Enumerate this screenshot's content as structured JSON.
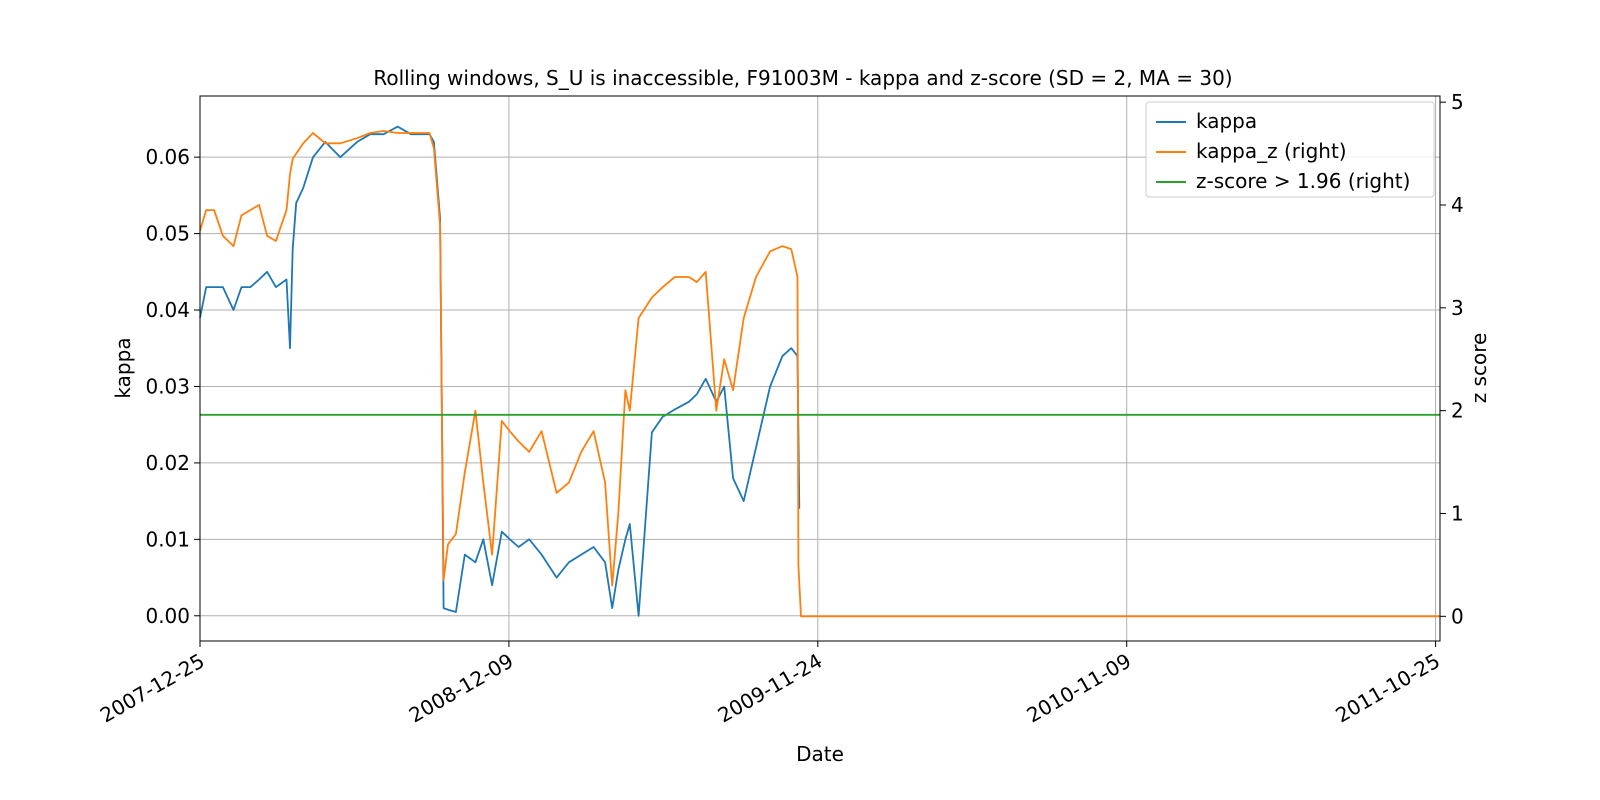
{
  "chart_data": {
    "type": "line",
    "title": "Rolling windows, S_U is inaccessible, F91003M - kappa and z-score (SD = 2, MA = 30)",
    "xlabel": "Date",
    "ylabel": "kappa",
    "ylabel_right": "z score",
    "x_ticks": [
      "2007-12-25",
      "2008-12-09",
      "2009-11-24",
      "2010-11-09",
      "2011-10-25"
    ],
    "y_ticks": [
      "0.00",
      "0.01",
      "0.02",
      "0.03",
      "0.04",
      "0.05",
      "0.06"
    ],
    "y_right_ticks": [
      "0",
      "1",
      "2",
      "3",
      "4",
      "5"
    ],
    "xlim": [
      "2007-12-25",
      "2011-10-30"
    ],
    "ylim": [
      -0.0033,
      0.068
    ],
    "ylim_right": [
      -0.24,
      5.06
    ],
    "grid": true,
    "legend_position": "top-right",
    "colors": {
      "kappa": "#1f77b4",
      "kappa_z": "#ff7f0e",
      "threshold": "#2ca02c"
    },
    "legend": [
      "kappa",
      "kappa_z (right)",
      "z-score > 1.96 (right)"
    ],
    "series": [
      {
        "name": "kappa",
        "axis": "left",
        "x": [
          "2007-12-25",
          "2008-01-01",
          "2008-01-10",
          "2008-01-20",
          "2008-02-01",
          "2008-02-10",
          "2008-02-20",
          "2008-03-01",
          "2008-03-10",
          "2008-03-20",
          "2008-04-01",
          "2008-04-05",
          "2008-04-08",
          "2008-04-12",
          "2008-04-20",
          "2008-05-01",
          "2008-05-15",
          "2008-06-01",
          "2008-06-20",
          "2008-07-05",
          "2008-07-20",
          "2008-08-05",
          "2008-08-20",
          "2008-09-01",
          "2008-09-10",
          "2008-09-15",
          "2008-09-22",
          "2008-09-26",
          "2008-10-01",
          "2008-10-10",
          "2008-10-20",
          "2008-11-01",
          "2008-11-10",
          "2008-11-20",
          "2008-12-01",
          "2008-12-10",
          "2008-12-20",
          "2009-01-01",
          "2009-01-15",
          "2009-02-01",
          "2009-02-15",
          "2009-03-01",
          "2009-03-15",
          "2009-03-28",
          "2009-04-05",
          "2009-04-12",
          "2009-04-20",
          "2009-04-25",
          "2009-05-05",
          "2009-05-20",
          "2009-06-01",
          "2009-06-15",
          "2009-07-01",
          "2009-07-10",
          "2009-07-20",
          "2009-08-01",
          "2009-08-10",
          "2009-08-20",
          "2009-09-01",
          "2009-09-15",
          "2009-10-01",
          "2009-10-15",
          "2009-10-25",
          "2009-11-01",
          "2009-11-03"
        ],
        "values": [
          0.039,
          0.043,
          0.043,
          0.043,
          0.04,
          0.043,
          0.043,
          0.044,
          0.045,
          0.043,
          0.044,
          0.035,
          0.048,
          0.054,
          0.056,
          0.06,
          0.062,
          0.06,
          0.062,
          0.063,
          0.063,
          0.064,
          0.063,
          0.063,
          0.063,
          0.062,
          0.052,
          0.001,
          0.0008,
          0.0005,
          0.008,
          0.007,
          0.01,
          0.004,
          0.011,
          0.01,
          0.009,
          0.01,
          0.008,
          0.005,
          0.007,
          0.008,
          0.009,
          0.007,
          0.001,
          0.006,
          0.01,
          0.012,
          0.0,
          0.024,
          0.026,
          0.027,
          0.028,
          0.029,
          0.031,
          0.028,
          0.03,
          0.018,
          0.015,
          0.022,
          0.03,
          0.034,
          0.035,
          0.034,
          0.014
        ]
      },
      {
        "name": "kappa_z (right)",
        "axis": "right",
        "x": [
          "2007-12-25",
          "2008-01-01",
          "2008-01-10",
          "2008-01-20",
          "2008-02-01",
          "2008-02-10",
          "2008-02-20",
          "2008-03-01",
          "2008-03-10",
          "2008-03-20",
          "2008-04-01",
          "2008-04-05",
          "2008-04-08",
          "2008-04-12",
          "2008-04-20",
          "2008-05-01",
          "2008-05-15",
          "2008-06-01",
          "2008-06-20",
          "2008-07-05",
          "2008-07-20",
          "2008-08-05",
          "2008-08-20",
          "2008-09-01",
          "2008-09-10",
          "2008-09-15",
          "2008-09-22",
          "2008-09-26",
          "2008-10-01",
          "2008-10-10",
          "2008-10-20",
          "2008-11-01",
          "2008-11-10",
          "2008-11-20",
          "2008-12-01",
          "2008-12-10",
          "2008-12-20",
          "2009-01-01",
          "2009-01-15",
          "2009-02-01",
          "2009-02-15",
          "2009-03-01",
          "2009-03-15",
          "2009-03-28",
          "2009-04-05",
          "2009-04-12",
          "2009-04-20",
          "2009-04-25",
          "2009-05-05",
          "2009-05-20",
          "2009-06-01",
          "2009-06-15",
          "2009-07-01",
          "2009-07-10",
          "2009-07-20",
          "2009-08-01",
          "2009-08-10",
          "2009-08-20",
          "2009-09-01",
          "2009-09-15",
          "2009-10-01",
          "2009-10-15",
          "2009-10-25",
          "2009-11-01",
          "2009-11-02",
          "2009-11-05",
          "2010-06-01",
          "2011-01-01",
          "2011-10-30"
        ],
        "values": [
          3.75,
          3.95,
          3.95,
          3.7,
          3.6,
          3.9,
          3.95,
          4.0,
          3.7,
          3.65,
          3.95,
          4.3,
          4.45,
          4.5,
          4.6,
          4.7,
          4.6,
          4.6,
          4.65,
          4.7,
          4.72,
          4.7,
          4.7,
          4.7,
          4.7,
          4.55,
          3.8,
          0.35,
          0.7,
          0.8,
          1.4,
          2.0,
          1.3,
          0.6,
          1.9,
          1.8,
          1.7,
          1.6,
          1.8,
          1.2,
          1.3,
          1.6,
          1.8,
          1.3,
          0.3,
          1.0,
          2.2,
          2.0,
          2.9,
          3.1,
          3.2,
          3.3,
          3.3,
          3.25,
          3.35,
          2.0,
          2.5,
          2.2,
          2.9,
          3.3,
          3.55,
          3.6,
          3.57,
          3.3,
          0.5,
          0,
          0,
          0,
          0
        ]
      },
      {
        "name": "z-score > 1.96 (right)",
        "axis": "right",
        "x": [
          "2007-12-25",
          "2011-10-30"
        ],
        "values": [
          1.96,
          1.96
        ]
      }
    ]
  }
}
